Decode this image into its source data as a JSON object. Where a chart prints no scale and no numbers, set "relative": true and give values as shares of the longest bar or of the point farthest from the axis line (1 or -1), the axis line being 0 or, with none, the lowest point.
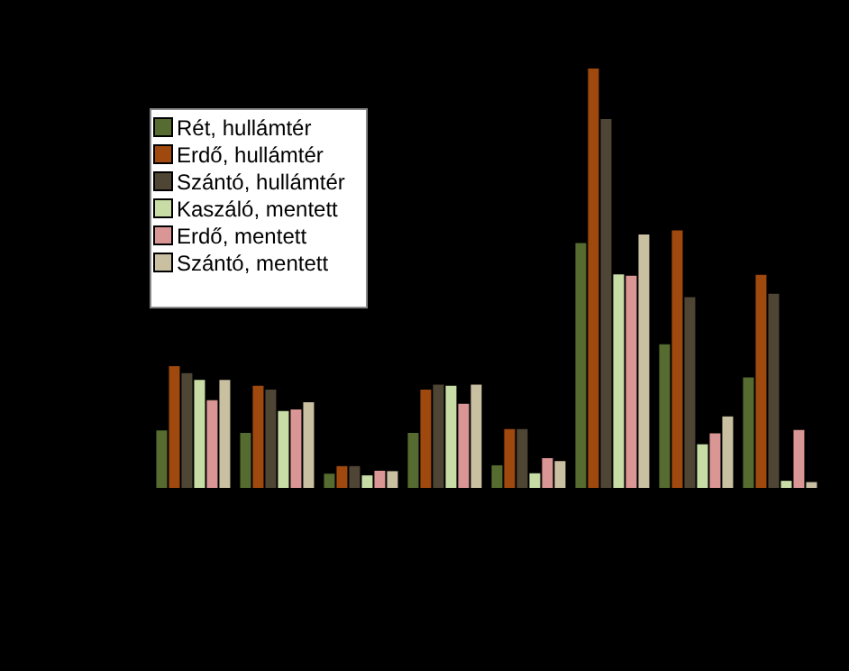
{
  "chart_data": {
    "type": "bar",
    "relative": true,
    "legend": "top left",
    "categories": [
      null,
      null,
      null,
      null,
      null,
      null,
      null,
      null
    ],
    "series": [
      {
        "name": "Rét, hullámtér",
        "color": "#556b2f",
        "values": [
          0.139,
          0.133,
          0.036,
          0.133,
          0.056,
          0.585,
          0.344,
          0.265
        ]
      },
      {
        "name": "Erdő, hullámtér",
        "color": "#a0490f",
        "values": [
          0.292,
          0.245,
          0.054,
          0.236,
          0.142,
          1,
          0.615,
          0.509
        ]
      },
      {
        "name": "Szántó, hullámtér",
        "color": "#4f4535",
        "values": [
          0.275,
          0.236,
          0.054,
          0.248,
          0.142,
          0.88,
          0.456,
          0.464
        ]
      },
      {
        "name": "Kaszáló, mentett",
        "color": "#c8dca5",
        "values": [
          0.259,
          0.185,
          0.032,
          0.245,
          0.037,
          0.51,
          0.106,
          0.019
        ]
      },
      {
        "name": "Erdő, mentett",
        "color": "#d99694",
        "values": [
          0.211,
          0.189,
          0.043,
          0.202,
          0.073,
          0.507,
          0.132,
          0.14
        ]
      },
      {
        "name": "Szántó, mentett",
        "color": "#c9bfa1",
        "values": [
          0.259,
          0.206,
          0.042,
          0.248,
          0.066,
          0.605,
          0.172,
          0.016
        ]
      }
    ]
  }
}
